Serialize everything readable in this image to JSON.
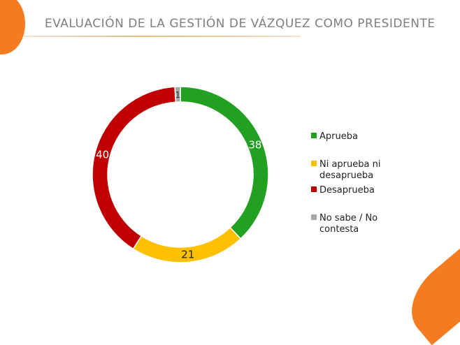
{
  "title": "EVALUACIÓN DE LA GESTIÓN DE VÁZQUEZ COMO PRESIDENTE",
  "chart_data": {
    "type": "pie",
    "variant": "donut",
    "title": "EVALUACIÓN DE LA GESTIÓN DE VÁZQUEZ COMO PRESIDENTE",
    "categories": [
      "Aprueba",
      "Ni aprueba ni desaprueba",
      "Desaprueba",
      "No sabe / No contesta"
    ],
    "legend_lines": [
      [
        "Aprueba"
      ],
      [
        "Ni aprueba ni",
        "desaprueba"
      ],
      [
        "Desaprueba"
      ],
      [
        "No sabe / No",
        "contesta"
      ]
    ],
    "values": [
      38,
      21,
      40,
      1
    ],
    "labels": [
      "38",
      "21",
      "40",
      "1"
    ],
    "colors": [
      "#22a022",
      "#ffc000",
      "#c00000",
      "#a6a6a6"
    ],
    "legend": "right"
  }
}
